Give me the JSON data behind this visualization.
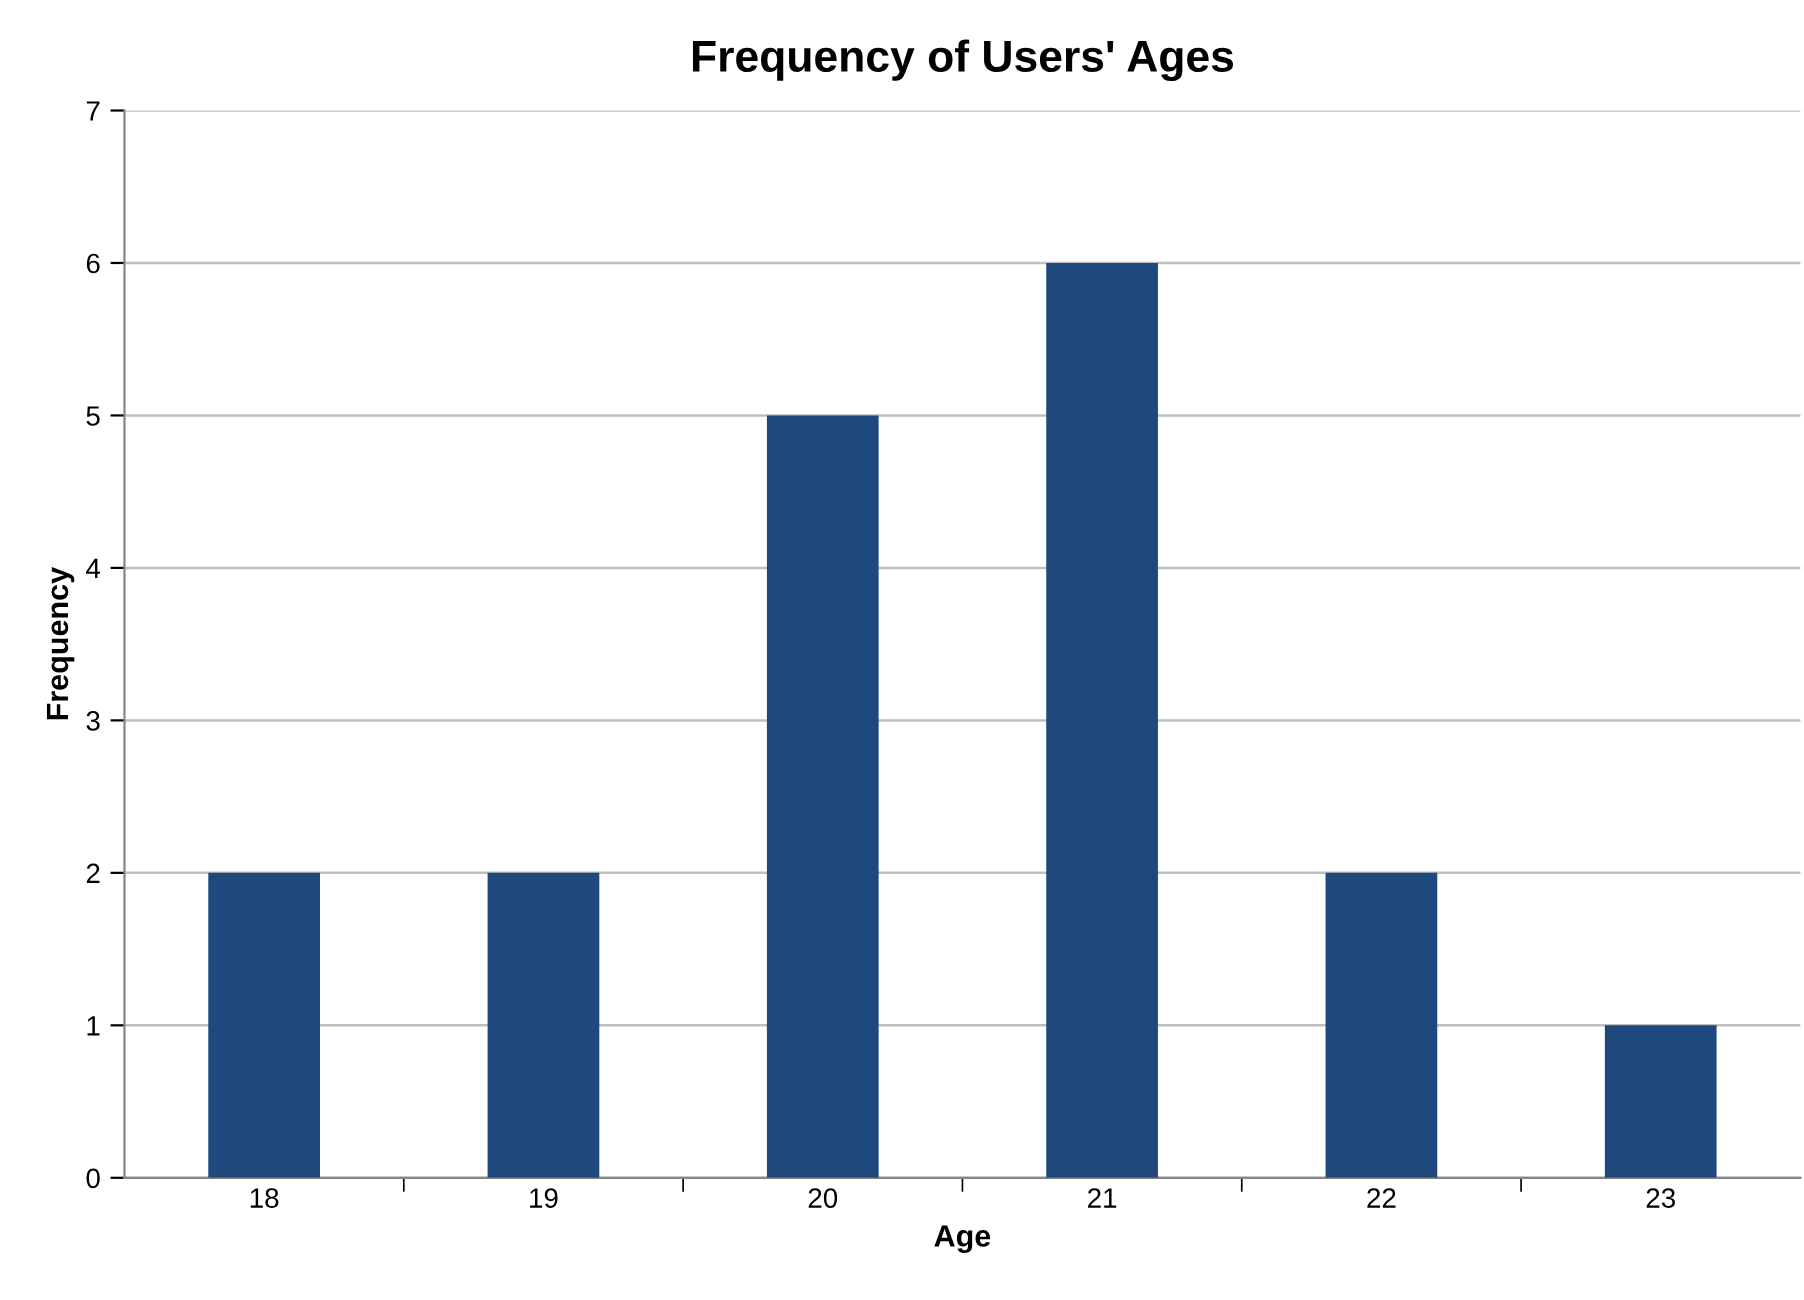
{
  "chart_data": {
    "type": "bar",
    "title": "Frequency of Users' Ages",
    "xlabel": "Age",
    "ylabel": "Frequency",
    "categories": [
      "18",
      "19",
      "20",
      "21",
      "22",
      "23"
    ],
    "series": [
      {
        "color": "#1f497d",
        "values": [
          2,
          2,
          5,
          6,
          2,
          1
        ]
      }
    ],
    "ylim": [
      0,
      7
    ],
    "yticks": [
      0,
      1,
      2,
      3,
      4,
      5,
      6,
      7
    ],
    "grid": "y"
  }
}
